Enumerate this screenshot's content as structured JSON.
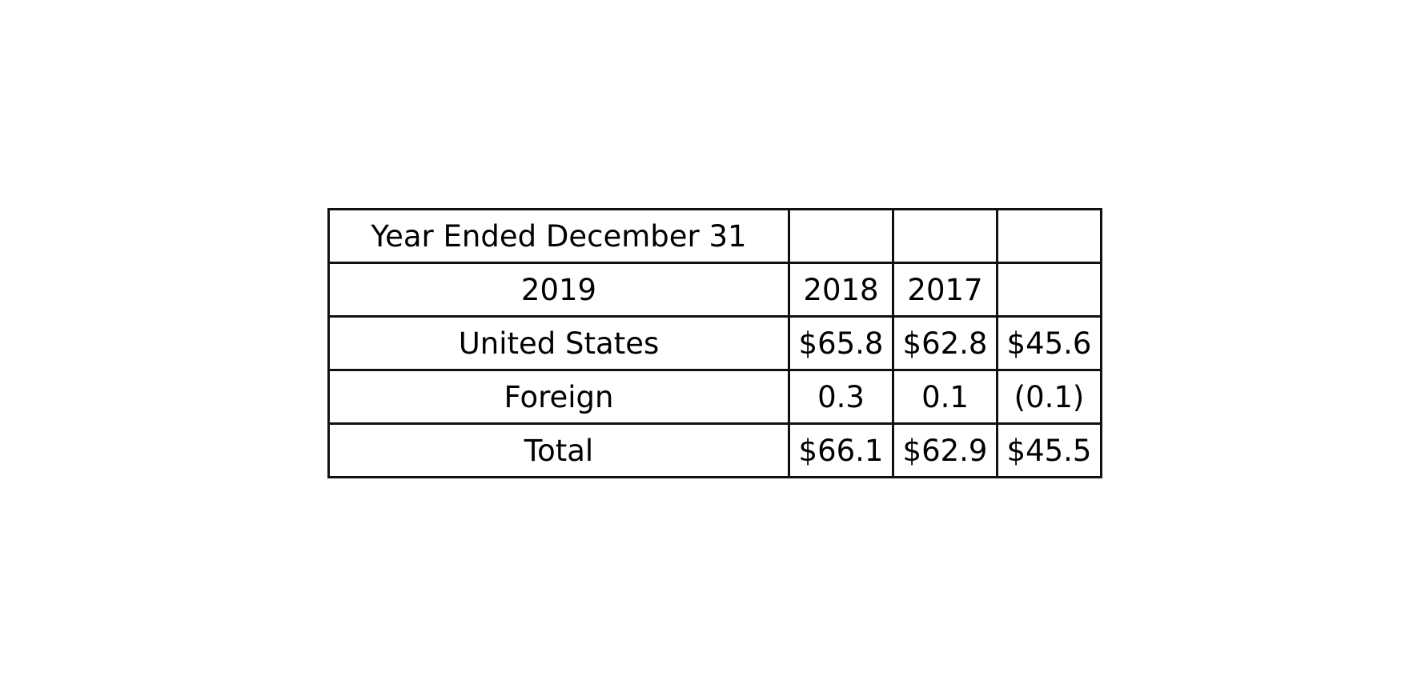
{
  "table": {
    "rows": [
      [
        "Year Ended December 31",
        "",
        "",
        ""
      ],
      [
        "2019",
        "2018",
        "2017",
        ""
      ],
      [
        "United States",
        "$65.8",
        "$62.8",
        "$45.6"
      ],
      [
        "Foreign",
        "0.3",
        "0.1",
        "(0.1)"
      ],
      [
        "Total",
        "$66.1",
        "$62.9",
        "$45.5"
      ]
    ]
  }
}
